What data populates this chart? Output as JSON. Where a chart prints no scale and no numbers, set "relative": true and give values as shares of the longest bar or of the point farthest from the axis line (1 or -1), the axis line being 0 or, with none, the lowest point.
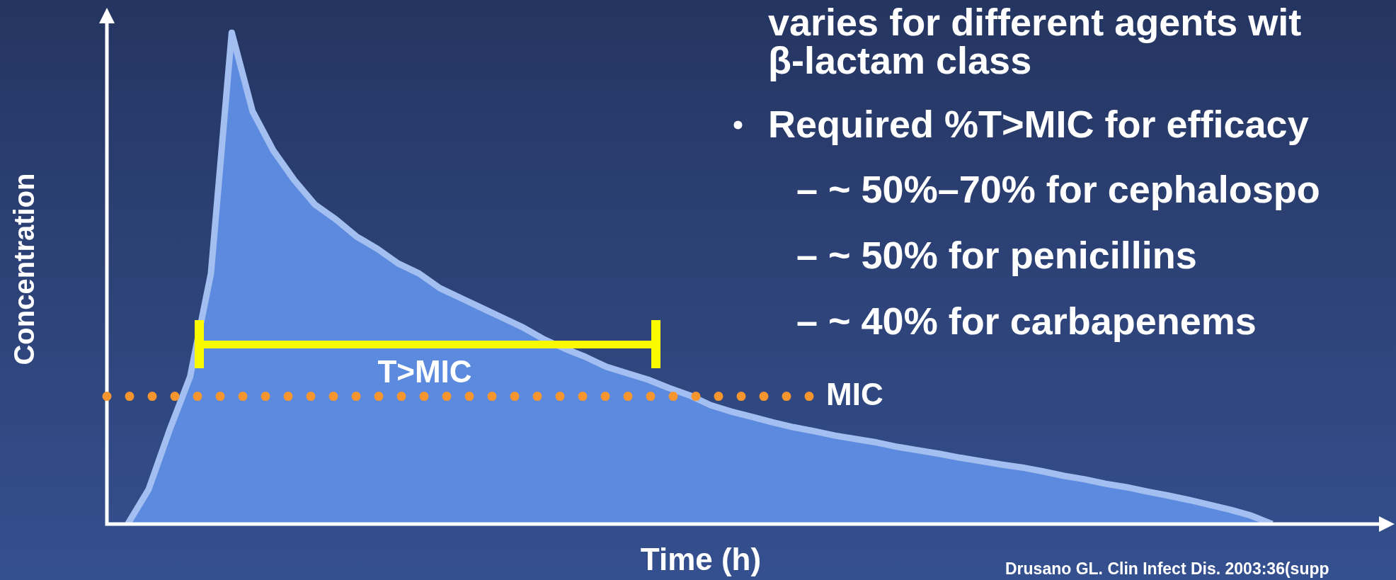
{
  "chart_data": {
    "type": "area",
    "relative": true,
    "xlabel": "Time (h)",
    "ylabel": "Concentration",
    "categories": [
      null,
      null,
      null,
      null,
      null,
      null,
      null,
      null,
      null,
      null,
      null,
      null,
      null,
      null,
      null,
      null,
      null,
      null,
      null,
      null,
      null,
      null,
      null,
      null,
      null,
      null,
      null,
      null,
      null,
      null,
      null,
      null,
      null,
      null,
      null,
      null,
      null,
      null,
      null,
      null,
      null,
      null,
      null,
      null,
      null,
      null,
      null,
      null,
      null,
      null,
      null,
      null,
      null,
      null,
      null,
      null,
      null,
      null,
      null,
      null,
      null,
      null
    ],
    "series": [
      {
        "color": "#5b8ade",
        "values": [
          null,
          0,
          0.07,
          0.19,
          0.3,
          0.51,
          1,
          0.84,
          0.76,
          0.7,
          0.65,
          0.62,
          0.585,
          0.56,
          0.53,
          0.51,
          0.48,
          0.46,
          0.44,
          0.42,
          0.4,
          0.376,
          0.357,
          0.34,
          0.32,
          0.307,
          0.294,
          0.277,
          0.262,
          0.242,
          0.229,
          0.218,
          0.207,
          0.197,
          0.189,
          0.18,
          0.173,
          0.166,
          0.157,
          0.15,
          0.143,
          0.135,
          0.128,
          0.121,
          0.115,
          0.107,
          0.098,
          0.091,
          0.082,
          0.075,
          0.066,
          0.058,
          0.049,
          0.039,
          0.029,
          0.017,
          0,
          null,
          null,
          null,
          null,
          null
        ]
      }
    ],
    "ref_lines": [
      {
        "axis": "y",
        "value": 0.26,
        "label": "MIC",
        "color": "#f7962e",
        "line_style": "dotted"
      }
    ],
    "annotations": [
      "T>MIC",
      "varies for different agents wit",
      "β-lactam class",
      "Required %T>MIC for efficacy",
      "– ~ 50%–70% for cephalospo",
      "– ~ 50% for penicillins",
      "– ~ 40% for carbapenems",
      "Drusano GL. Clin Infect Dis. 2003:36(supp"
    ],
    "legend": false
  }
}
